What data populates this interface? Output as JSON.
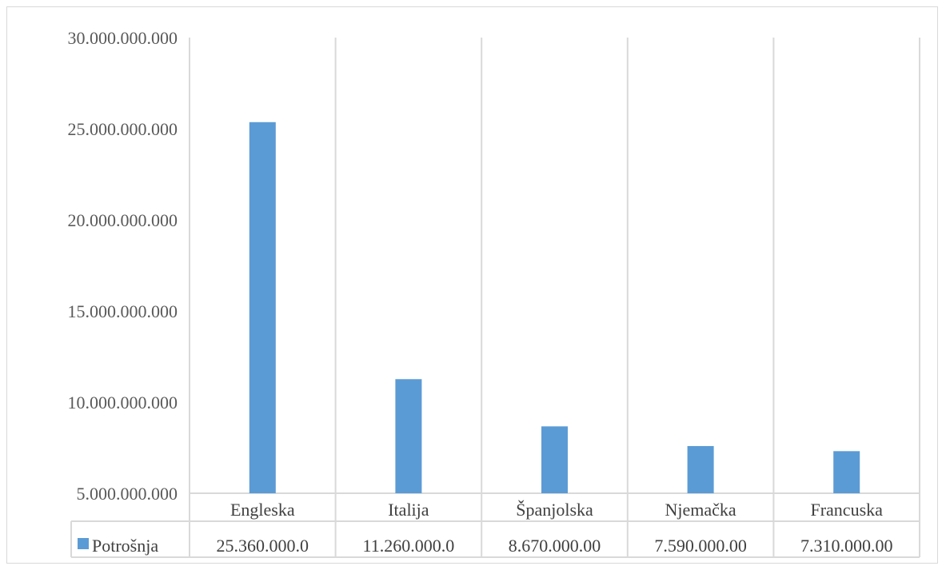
{
  "chart_data": {
    "type": "bar",
    "categories": [
      "Engleska",
      "Italija",
      "Španjolska",
      "Njemačka",
      "Francuska"
    ],
    "series": [
      {
        "name": "Potrošnja",
        "values": [
          25360000000,
          11260000000,
          8670000000,
          7590000000,
          7310000000
        ],
        "table_labels": [
          "25.360.000.0",
          "11.260.000.0",
          "8.670.000.00",
          "7.590.000.00",
          "7.310.000.00"
        ],
        "color": "#5b9bd5"
      }
    ],
    "y_ticks": [
      {
        "value": 30000000000,
        "label": "30.000.000.000"
      },
      {
        "value": 25000000000,
        "label": "25.000.000.000"
      },
      {
        "value": 20000000000,
        "label": "20.000.000.000"
      },
      {
        "value": 15000000000,
        "label": "15.000.000.000"
      },
      {
        "value": 10000000000,
        "label": "10.000.000.000"
      },
      {
        "value": 5000000000,
        "label": "5.000.000.000"
      }
    ],
    "ylim": [
      5000000000,
      30000000000
    ],
    "title": "",
    "xlabel": "",
    "ylabel": "",
    "grid": "vertical",
    "data_table": true
  }
}
